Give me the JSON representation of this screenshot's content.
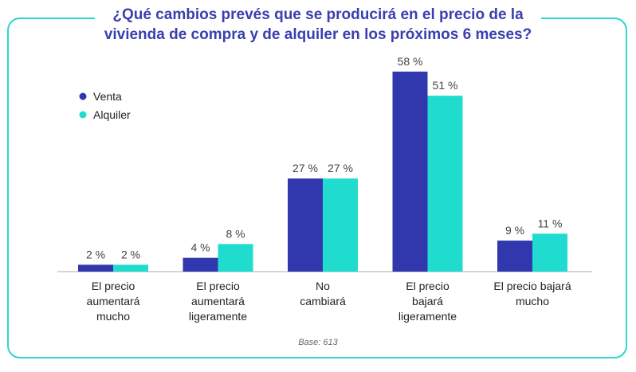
{
  "title_lines": [
    "¿Qué cambios prevés que se producirá en el precio de la",
    "vivienda de compra y de alquiler en los próximos 6 meses?"
  ],
  "footnote": "Base: 613",
  "colors": {
    "venta": "#3137ad",
    "alquiler": "#20dccf",
    "frame": "#2fd6c9",
    "title": "#3a3fb0"
  },
  "chart_data": {
    "type": "bar",
    "categories": [
      [
        "El precio",
        "aumentará",
        "mucho"
      ],
      [
        "El precio",
        "aumentará",
        "ligeramente"
      ],
      [
        "No",
        "cambiará"
      ],
      [
        "El precio",
        "bajará",
        "ligeramente"
      ],
      [
        "El precio bajará",
        "mucho"
      ]
    ],
    "series": [
      {
        "name": "Venta",
        "values": [
          2,
          4,
          27,
          58,
          9
        ],
        "labels": [
          "2 %",
          "4 %",
          "27 %",
          "58 %",
          "9 %"
        ]
      },
      {
        "name": "Alquiler",
        "values": [
          2,
          8,
          27,
          51,
          11
        ],
        "labels": [
          "2 %",
          "8 %",
          "27 %",
          "51 %",
          "11 %"
        ]
      }
    ],
    "ylim": [
      0,
      100
    ],
    "grid": false,
    "legend": "top-left"
  }
}
